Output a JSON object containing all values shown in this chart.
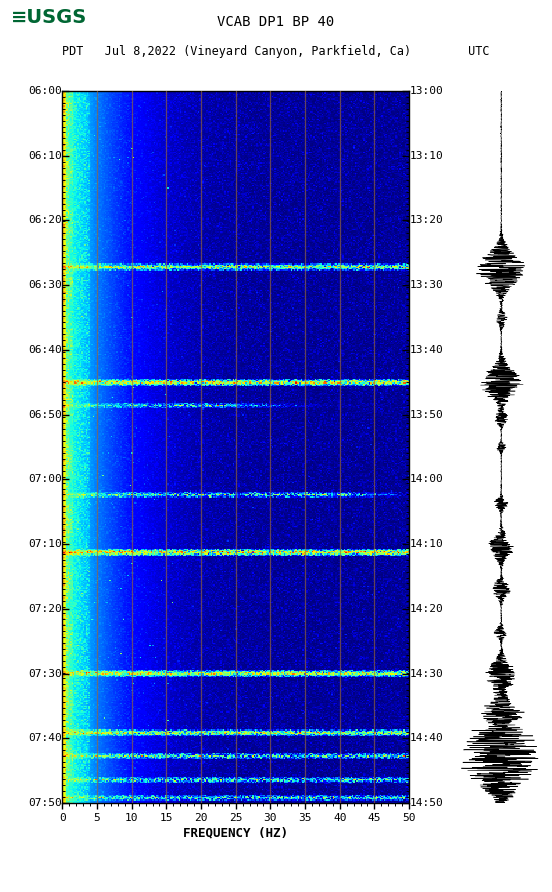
{
  "title_line1": "VCAB DP1 BP 40",
  "title_line2": "PDT   Jul 8,2022 (Vineyard Canyon, Parkfield, Ca)        UTC",
  "xlabel": "FREQUENCY (HZ)",
  "freq_ticks": [
    0,
    5,
    10,
    15,
    20,
    25,
    30,
    35,
    40,
    45,
    50
  ],
  "time_labels_left": [
    "06:00",
    "06:10",
    "06:20",
    "06:30",
    "06:40",
    "06:50",
    "07:00",
    "07:10",
    "07:20",
    "07:30",
    "07:40",
    "07:50"
  ],
  "time_labels_right": [
    "13:00",
    "13:10",
    "13:20",
    "13:30",
    "13:40",
    "13:50",
    "14:00",
    "14:10",
    "14:20",
    "14:30",
    "14:40",
    "14:50"
  ],
  "n_time_steps": 600,
  "n_freq_bins": 250,
  "colormap": "jet",
  "vertical_grid_freqs": [
    5,
    10,
    15,
    20,
    25,
    30,
    35,
    40,
    45
  ],
  "grid_color": "#996633",
  "usgs_color": "#006633",
  "event_rows": [
    148,
    149,
    245,
    246,
    265,
    340,
    388,
    389,
    490,
    491,
    540,
    541,
    560,
    580,
    595
  ],
  "event_amps": [
    8.0,
    8.0,
    12.0,
    12.0,
    6.0,
    7.0,
    15.0,
    15.0,
    10.0,
    10.0,
    9.0,
    9.0,
    8.0,
    7.5,
    7.0
  ],
  "event_max_freq_bin": [
    250,
    250,
    250,
    250,
    120,
    200,
    250,
    250,
    250,
    250,
    250,
    250,
    250,
    250,
    250
  ]
}
